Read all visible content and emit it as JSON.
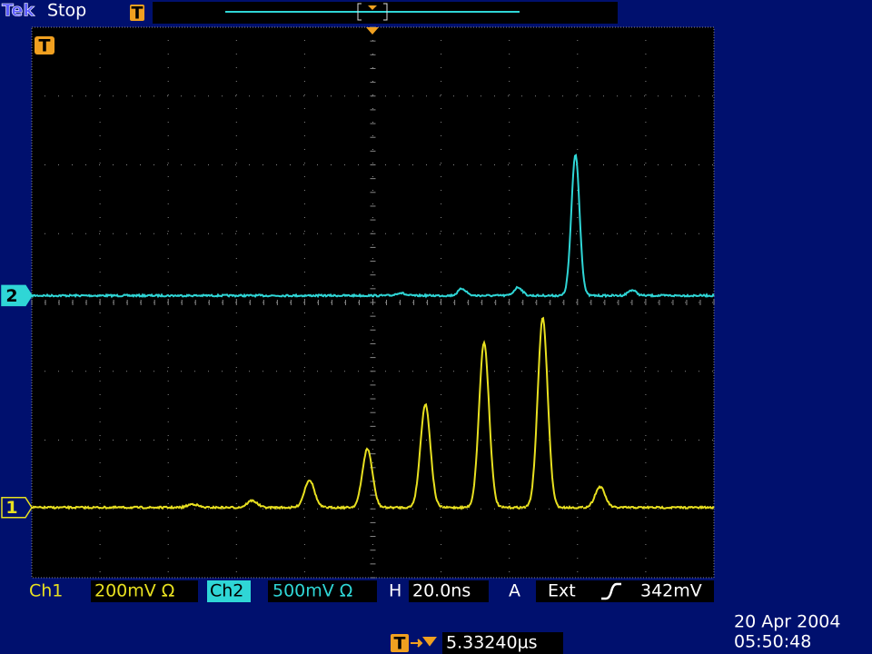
{
  "header": {
    "brand": "Tek",
    "status": "Stop",
    "trigger_icon": "T"
  },
  "channels": [
    {
      "marker": "2",
      "color": "#2fd6d6",
      "offset": 0.1,
      "peaks": [
        {
          "x": 5.4,
          "height": 0.04
        },
        {
          "x": 6.31,
          "height": 0.1
        },
        {
          "x": 7.13,
          "height": 0.12
        },
        {
          "x": 7.97,
          "height": 2.05
        },
        {
          "x": 8.8,
          "height": 0.08
        }
      ]
    },
    {
      "marker": "1",
      "color": "#e8e020",
      "offset": -2.98,
      "peaks": [
        {
          "x": 2.36,
          "height": 0.05
        },
        {
          "x": 3.23,
          "height": 0.1
        },
        {
          "x": 4.07,
          "height": 0.4
        },
        {
          "x": 4.92,
          "height": 0.85
        },
        {
          "x": 5.77,
          "height": 1.5
        },
        {
          "x": 6.63,
          "height": 2.4
        },
        {
          "x": 7.49,
          "height": 2.75
        },
        {
          "x": 8.33,
          "height": 0.3
        }
      ]
    }
  ],
  "footer": {
    "ch1_label": "Ch1",
    "ch1_scale": "200mV Ω",
    "ch2_label": "Ch2",
    "ch2_scale": "500mV Ω",
    "h_label": "H",
    "h_scale": "20.0ns",
    "trigger_mode": "A",
    "trigger_source": "Ext",
    "trigger_level": "342mV",
    "trigger_position": "5.33240µs",
    "date": "20 Apr 2004",
    "time": "05:50:48"
  }
}
